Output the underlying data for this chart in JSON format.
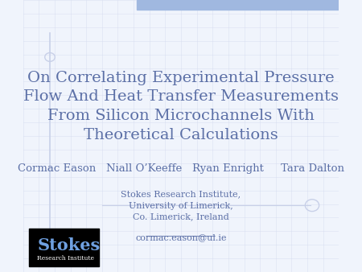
{
  "slide_bg": "#f0f4fc",
  "title_text": "On Correlating Experimental Pressure\nFlow And Heat Transfer Measurements\nFrom Silicon Microchannels With\nTheoretical Calculations",
  "title_color": "#5b6fa6",
  "authors_text": "Cormac Eason   Niall O’Keeffe   Ryan Enright     Tara Dalton",
  "authors_color": "#5b6fa6",
  "institute_lines": [
    "Stokes Research Institute,",
    "University of Limerick,",
    "Co. Limerick, Ireland"
  ],
  "institute_color": "#5b6fa6",
  "email_text": "cormac.eason@ul.ie",
  "email_color": "#5b6fa6",
  "grid_color": "#c8d0e8",
  "title_fontsize": 14,
  "authors_fontsize": 9.5,
  "institute_fontsize": 8,
  "email_fontsize": 8,
  "stokes_box_color": "#000000",
  "stokes_text_white": "#ffffff",
  "stokes_text_blue": "#6fa0e0",
  "top_bar_color": "#a0b8e0"
}
